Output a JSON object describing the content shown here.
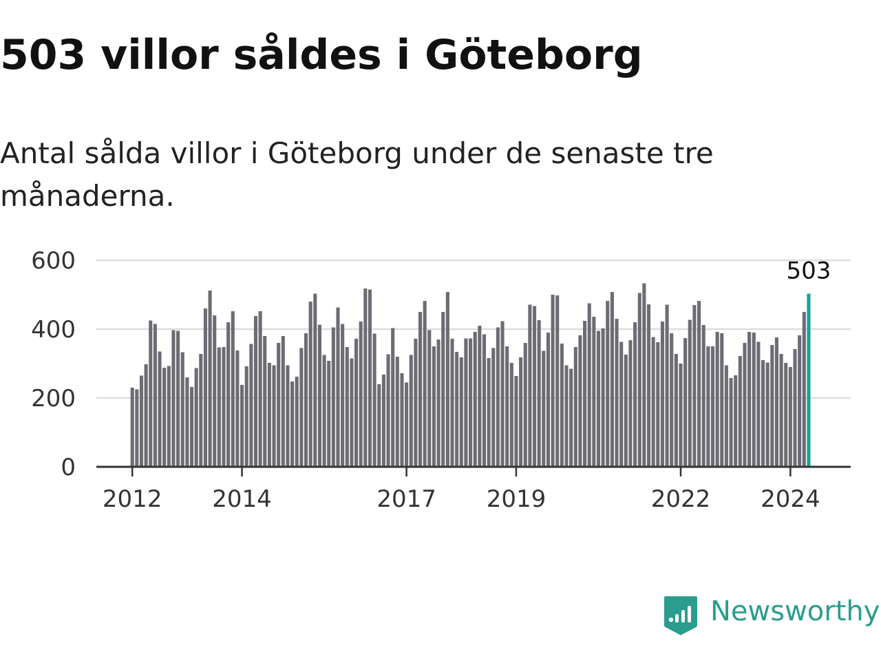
{
  "title": "503 villor såldes i Göteborg",
  "subtitle": "Antal sålda villor i Göteborg under de senaste tre månaderna.",
  "brand": {
    "name": "Newsworthy",
    "color": "#2a9d8f"
  },
  "colors": {
    "bar": "#6d6c73",
    "highlight": "#17a398",
    "grid": "#dddddd",
    "axis": "#333333"
  },
  "chart_data": {
    "type": "bar",
    "title": "503 villor såldes i Göteborg",
    "subtitle": "Antal sålda villor i Göteborg under de senaste tre månaderna.",
    "xlabel": "",
    "ylabel": "",
    "ylim": [
      0,
      600
    ],
    "yticks": [
      0,
      200,
      400,
      600
    ],
    "grid": true,
    "start": "2012-01",
    "xticks": [
      {
        "label": "2012",
        "index": 0
      },
      {
        "label": "2014",
        "index": 24
      },
      {
        "label": "2017",
        "index": 60
      },
      {
        "label": "2019",
        "index": 84
      },
      {
        "label": "2022",
        "index": 120
      },
      {
        "label": "2024",
        "index": 144
      }
    ],
    "values": [
      230,
      225,
      265,
      298,
      425,
      415,
      335,
      288,
      293,
      397,
      395,
      333,
      260,
      232,
      287,
      328,
      460,
      512,
      440,
      347,
      348,
      420,
      452,
      338,
      238,
      292,
      357,
      438,
      452,
      380,
      302,
      295,
      360,
      380,
      295,
      248,
      262,
      345,
      388,
      480,
      503,
      413,
      325,
      308,
      405,
      463,
      415,
      348,
      315,
      372,
      422,
      518,
      515,
      387,
      240,
      268,
      327,
      403,
      320,
      272,
      245,
      325,
      372,
      450,
      482,
      397,
      350,
      370,
      450,
      508,
      372,
      334,
      318,
      373,
      373,
      392,
      410,
      385,
      316,
      345,
      405,
      423,
      350,
      302,
      264,
      318,
      360,
      471,
      467,
      426,
      337,
      390,
      500,
      498,
      358,
      295,
      285,
      348,
      382,
      424,
      475,
      436,
      395,
      402,
      482,
      508,
      430,
      363,
      326,
      368,
      420,
      505,
      533,
      472,
      377,
      362,
      422,
      471,
      388,
      328,
      300,
      374,
      427,
      470,
      482,
      412,
      350,
      350,
      392,
      388,
      295,
      258,
      266,
      322,
      360,
      392,
      390,
      363,
      310,
      303,
      354,
      376,
      328,
      302,
      290,
      342,
      382,
      450,
      503
    ]
  }
}
